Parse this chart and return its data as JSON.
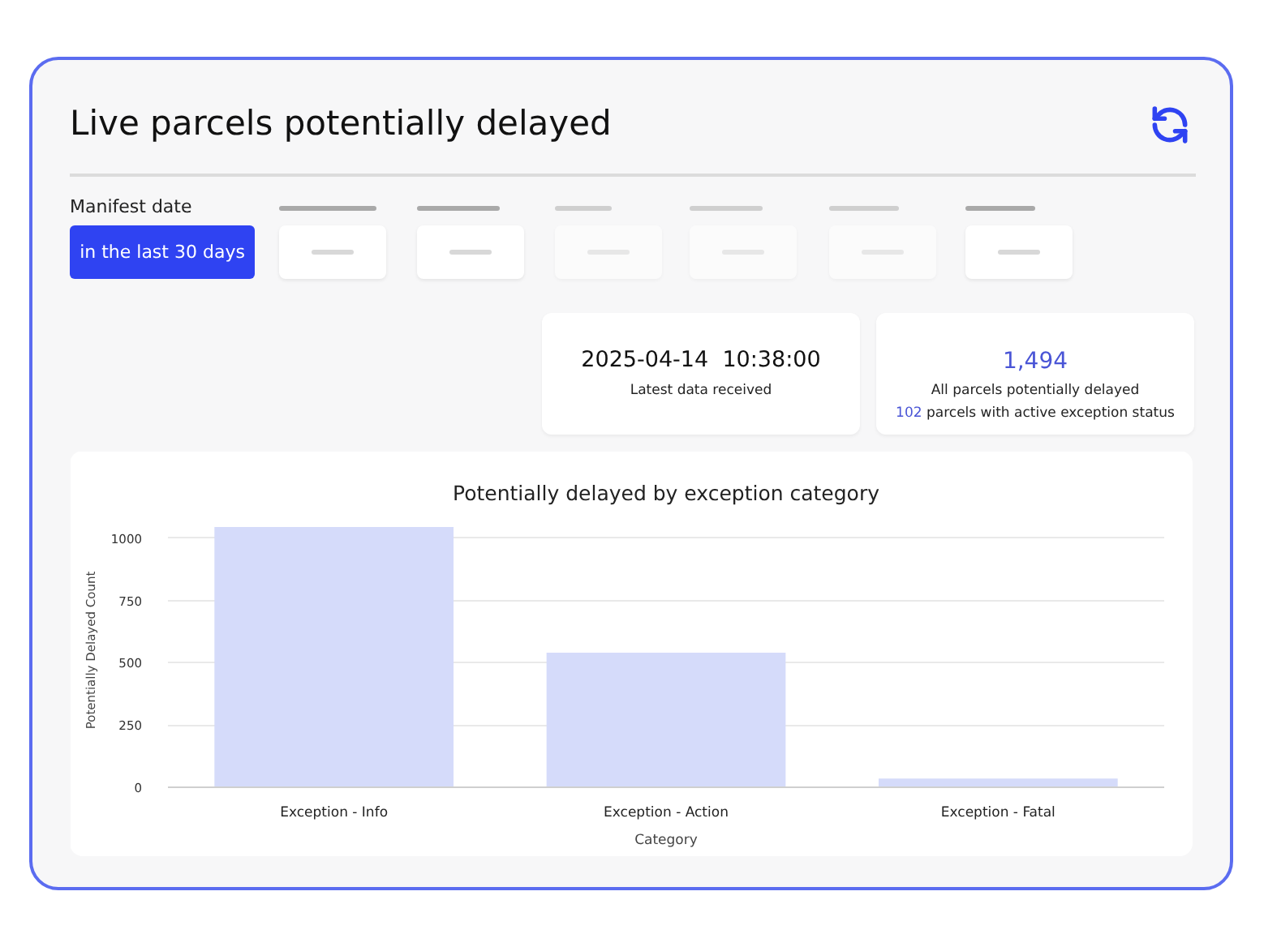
{
  "chart_data": [
    {
      "type": "other",
      "title": "Live parcels potentially delayed",
      "annotations": [
        "Manifest date",
        "in the last 30 days",
        "2025-04-14  10:38:00",
        "Latest data received",
        "1,494",
        "All parcels potentially delayed",
        "102 parcels with active exception status"
      ]
    },
    {
      "type": "bar",
      "title": "Potentially delayed by exception category",
      "xlabel": "Category",
      "ylabel": "Potentially Delayed Count",
      "categories": [
        "Exception - Info",
        "Exception - Action",
        "Exception - Fatal"
      ],
      "values": [
        1045,
        540,
        35
      ],
      "color": "#d5dbfa",
      "ylim": [
        0,
        1100
      ],
      "yticks": [
        0,
        250,
        500,
        750,
        1000
      ],
      "grid": "y"
    }
  ]
}
